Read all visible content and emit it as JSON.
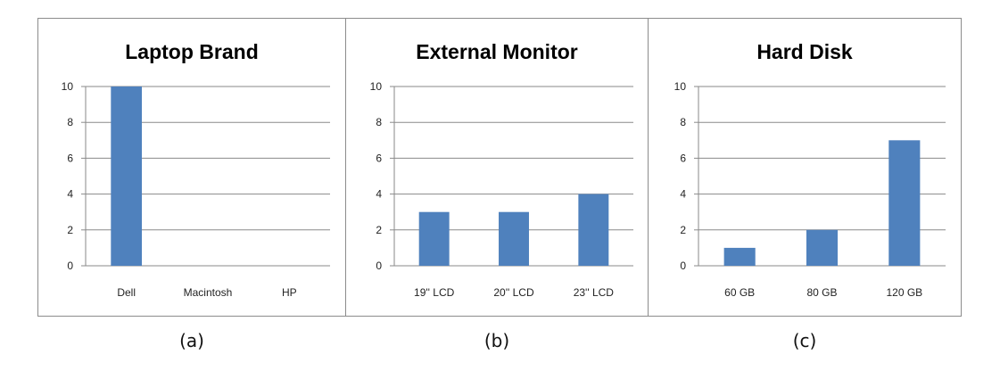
{
  "bar_color": "#4f81bd",
  "chart_data": [
    {
      "type": "bar",
      "title": "Laptop Brand",
      "caption": "(a)",
      "categories": [
        "Dell",
        "Macintosh",
        "HP"
      ],
      "values": [
        10,
        0,
        0
      ],
      "ylim": [
        0,
        10
      ],
      "yticks": [
        "0",
        "2",
        "4",
        "6",
        "8",
        "10"
      ],
      "grid": true
    },
    {
      "type": "bar",
      "title": "External Monitor",
      "caption": "(b)",
      "categories": [
        "19'' LCD",
        "20'' LCD",
        "23'' LCD"
      ],
      "values": [
        3,
        3,
        4
      ],
      "ylim": [
        0,
        10
      ],
      "yticks": [
        "0",
        "2",
        "4",
        "6",
        "8",
        "10"
      ],
      "grid": true
    },
    {
      "type": "bar",
      "title": "Hard Disk",
      "caption": "(c)",
      "categories": [
        "60 GB",
        "80 GB",
        "120 GB"
      ],
      "values": [
        1,
        2,
        7
      ],
      "ylim": [
        0,
        10
      ],
      "yticks": [
        "0",
        "2",
        "4",
        "6",
        "8",
        "10"
      ],
      "grid": true
    }
  ]
}
